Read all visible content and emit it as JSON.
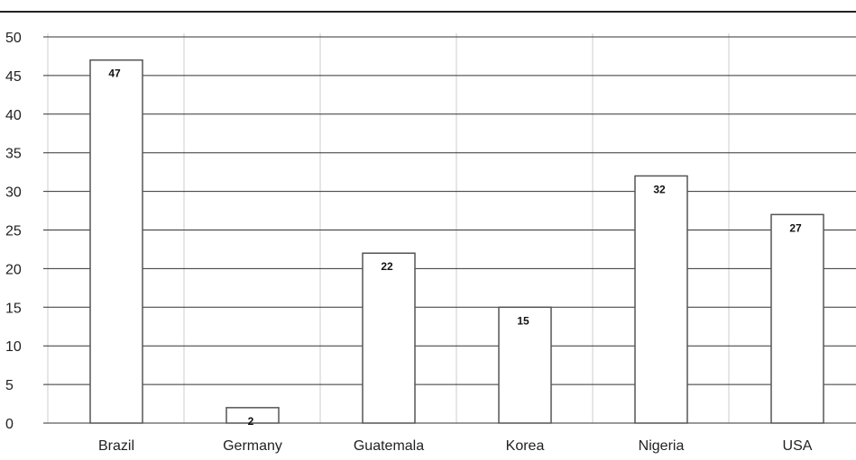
{
  "chart_data": {
    "type": "bar",
    "title": "",
    "xlabel": "",
    "ylabel": "",
    "categories": [
      "Brazil",
      "Germany",
      "Guatemala",
      "Korea",
      "Nigeria",
      "USA"
    ],
    "values": [
      47,
      2,
      22,
      15,
      32,
      27
    ],
    "data_labels": [
      "47",
      "2",
      "22",
      "15",
      "32",
      "27"
    ],
    "ylim": [
      0,
      50
    ],
    "yticks": [
      "0",
      "5",
      "10",
      "15",
      "20",
      "25",
      "30",
      "35",
      "40",
      "45",
      "50"
    ],
    "grid": true,
    "legend": "none",
    "colors": {
      "bar_fill": "#ffffff",
      "bar_stroke": "#555555",
      "gridline": "#333333",
      "vgrid": "#cccccc"
    }
  }
}
